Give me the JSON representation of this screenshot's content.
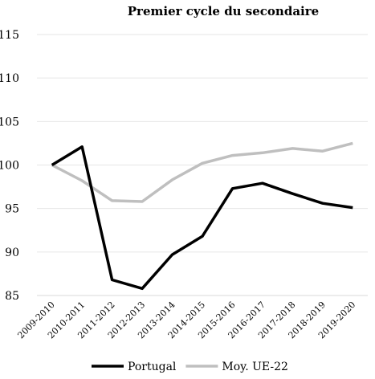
{
  "chart_data": {
    "type": "line",
    "title": "Premier cycle du secondaire",
    "xlabel": "",
    "ylabel": "",
    "categories": [
      "2009-2010",
      "2010-2011",
      "2011-2012",
      "2012-2013",
      "2013-2014",
      "2014-2015",
      "2015-2016",
      "2016-2017",
      "2017-2018",
      "2018-2019",
      "2019-2020"
    ],
    "ylim": [
      85,
      115
    ],
    "yticks": [
      85,
      90,
      95,
      100,
      105,
      110,
      115
    ],
    "grid": "horizontal",
    "legend": "bottom",
    "series": [
      {
        "name": "Portugal",
        "color": "#000000",
        "values": [
          100,
          102.1,
          86.8,
          85.8,
          89.7,
          91.8,
          97.3,
          97.9,
          96.7,
          95.6,
          95.1
        ]
      },
      {
        "name": "Moy. UE-22",
        "color": "#bfbfbf",
        "values": [
          100,
          98.2,
          95.9,
          95.8,
          98.3,
          100.2,
          101.1,
          101.4,
          101.9,
          101.6,
          102.5
        ]
      }
    ]
  }
}
